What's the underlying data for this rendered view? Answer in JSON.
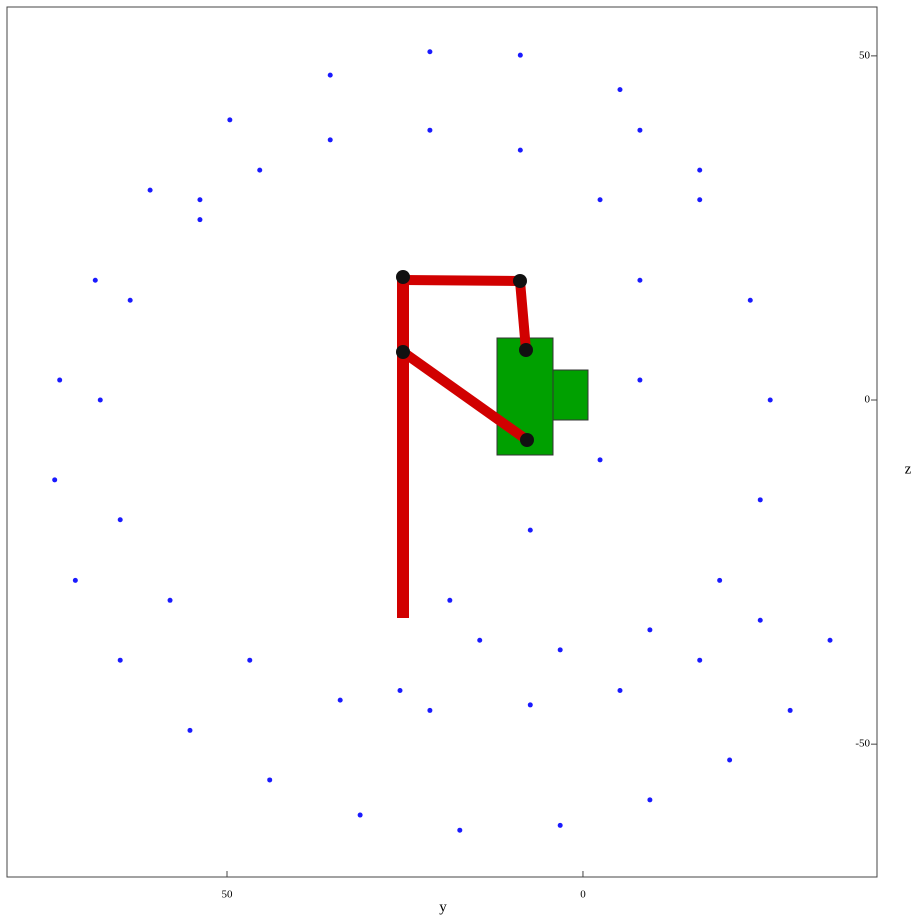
{
  "chart_data": {
    "type": "scatter",
    "x_label": "y",
    "y_label": "z",
    "xlim": [
      80.9,
      -41.3
    ],
    "ylim": [
      -69.3,
      57.1
    ],
    "xticks": [
      50,
      0
    ],
    "yticks": [
      50,
      0,
      -50
    ],
    "series": [
      {
        "color": "#1a1aff",
        "x": [
          -16.4,
          -5.2,
          8.8,
          21.5,
          35.5,
          49.6,
          60.8,
          68.5,
          73.5,
          74.2,
          71.3,
          65.0,
          55.2,
          44.0,
          31.3,
          17.3,
          3.2,
          -9.4,
          -20.6,
          -29.1,
          -34.7
        ],
        "values": [
          33.4,
          45.1,
          50.1,
          50.6,
          47.2,
          40.7,
          30.5,
          17.4,
          2.9,
          -11.6,
          -26.2,
          -37.8,
          -48.0,
          -55.2,
          -60.3,
          -62.5,
          -61.8,
          -58.1,
          -52.3,
          -45.1,
          -34.9
        ]
      },
      {
        "color": "#1a1aff",
        "x": [
          53.8,
          63.6,
          67.8,
          65.0,
          58.0,
          46.8,
          34.1,
          21.5,
          7.4,
          -5.2,
          -16.4,
          -24.9
        ],
        "values": [
          29.1,
          14.5,
          0,
          -17.4,
          -29.1,
          -37.8,
          -43.6,
          -45.1,
          -44.3,
          -42.2,
          -37.8,
          -32.0
        ]
      },
      {
        "color": "#1a1aff",
        "x": [
          -8.0,
          -16.4,
          -23.5,
          -26.3,
          -24.9,
          -19.2,
          -9.4,
          3.2,
          14.5
        ],
        "values": [
          39.2,
          29.1,
          14.5,
          0,
          -14.5,
          -26.2,
          -33.4,
          -36.3,
          -34.9
        ]
      },
      {
        "color": "#1a1aff",
        "x": [
          25.7,
          18.7,
          7.4,
          -2.4,
          -8.0,
          -8.0,
          -2.4,
          8.8,
          21.5,
          35.5,
          45.4,
          53.8
        ],
        "values": [
          -42.2,
          -29.1,
          -18.9,
          -8.7,
          2.9,
          17.4,
          29.1,
          36.3,
          39.2,
          37.8,
          33.4,
          26.2
        ]
      }
    ]
  }
}
